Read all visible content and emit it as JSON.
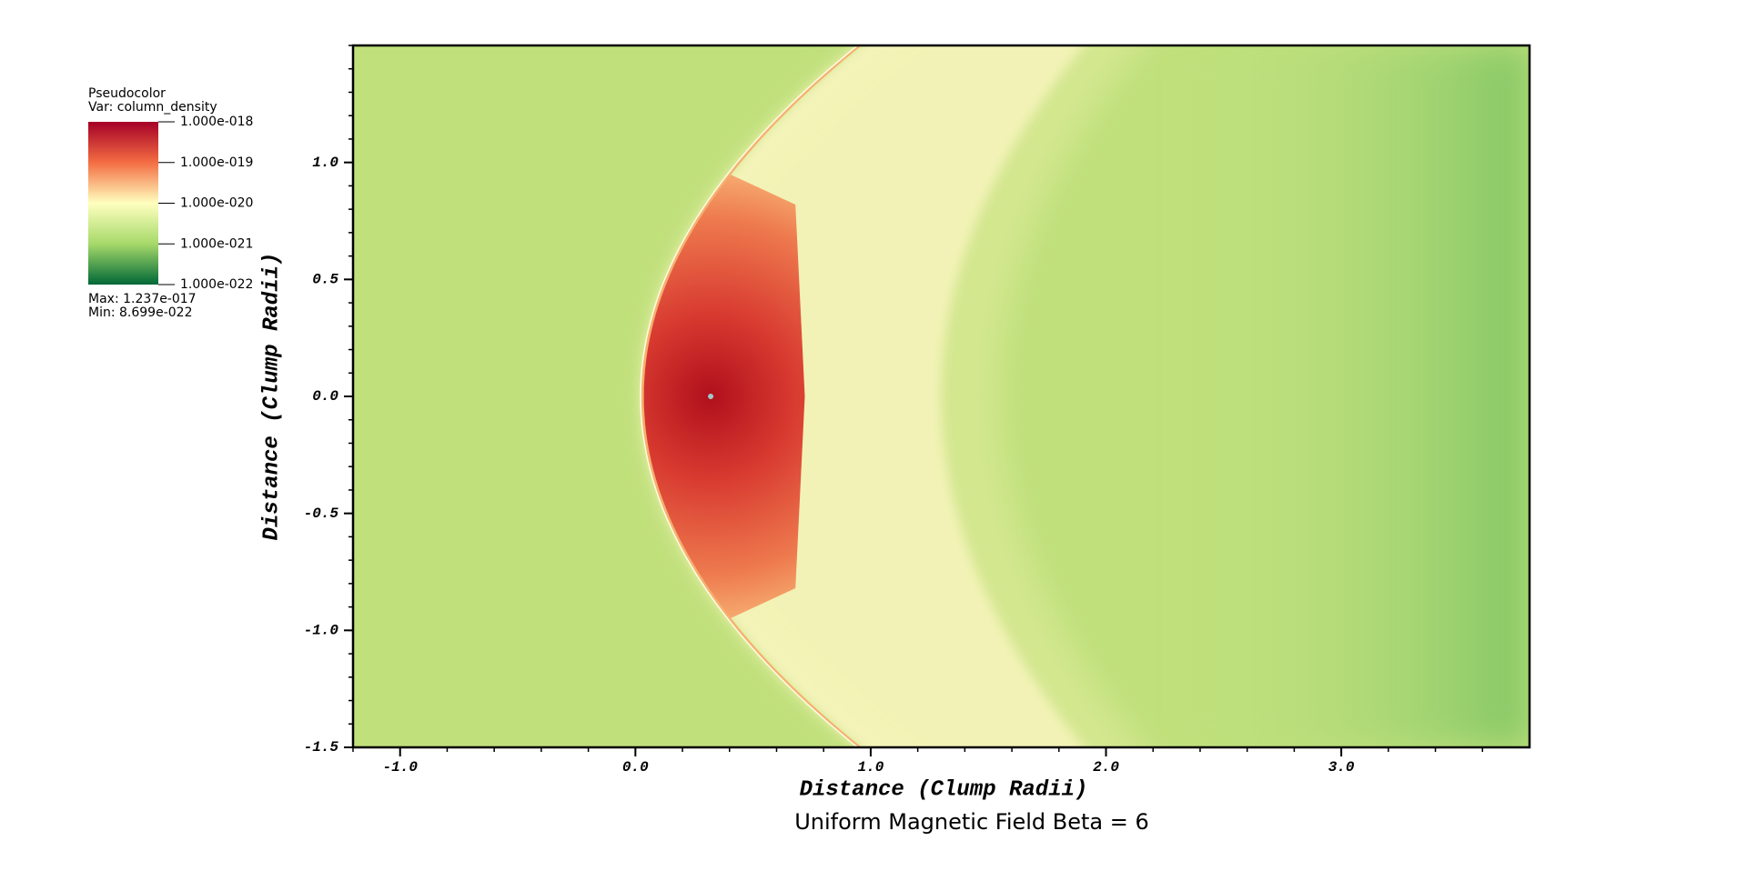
{
  "chart_data": {
    "type": "pseudocolor",
    "title": "Uniform Magnetic Field Beta = 6",
    "xlabel": "Distance (Clump Radii)",
    "ylabel": "Distance (Clump Radii)",
    "xlim": [
      -1.2,
      3.8
    ],
    "ylim": [
      -1.5,
      1.5
    ],
    "xticks": [
      {
        "value": -1,
        "label": "-1.0"
      },
      {
        "value": 0,
        "label": "0.0"
      },
      {
        "value": 1,
        "label": "1.0"
      },
      {
        "value": 2,
        "label": "2.0"
      },
      {
        "value": 3,
        "label": "3.0"
      }
    ],
    "yticks": [
      {
        "value": -1.5,
        "label": "-1.5"
      },
      {
        "value": -1,
        "label": "-1.0"
      },
      {
        "value": -0.5,
        "label": "-0.5"
      },
      {
        "value": 0,
        "label": "0.0"
      },
      {
        "value": 0.5,
        "label": "0.5"
      },
      {
        "value": 1,
        "label": "1.0"
      }
    ],
    "colorbar": {
      "title": "Pseudocolor",
      "var": "Var: column_density",
      "log": true,
      "clim": [
        1e-22,
        1e-18
      ],
      "ticks": [
        {
          "value": 1e-18,
          "label": "1.000e-018"
        },
        {
          "value": 1e-19,
          "label": "1.000e-019"
        },
        {
          "value": 1e-20,
          "label": "1.000e-020"
        },
        {
          "value": 1e-21,
          "label": "1.000e-021"
        },
        {
          "value": 1e-22,
          "label": "1.000e-022"
        }
      ],
      "colors": [
        "#a50026",
        "#f46d43",
        "#ffffbf",
        "#a6d96a",
        "#006837"
      ],
      "max": "Max:  1.237e-017",
      "min": "Min:  8.699e-022"
    }
  }
}
